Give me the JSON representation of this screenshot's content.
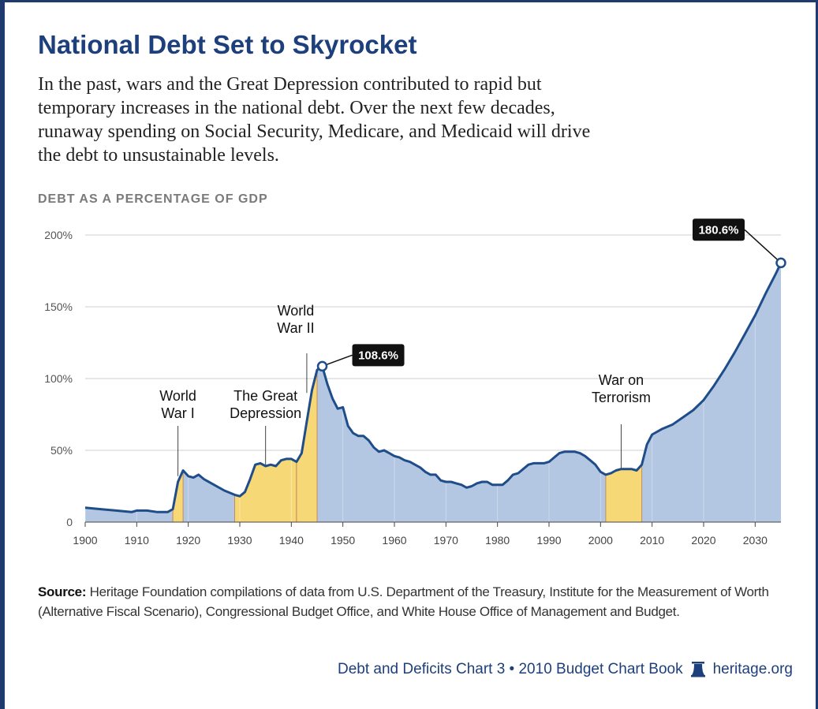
{
  "title": "National Debt Set to Skyrocket",
  "intro_lines": [
    "In the past, wars and the Great Depression contributed to rapid but",
    "temporary increases in the national debt. Over the next few decades,",
    "runaway spending on Social Security, Medicare, and Medicaid will drive",
    "the debt to unsustainable levels."
  ],
  "chart_label": "DEBT AS A PERCENTAGE OF GDP",
  "chart_data": {
    "type": "area",
    "title": "DEBT AS A PERCENTAGE OF GDP",
    "xlim": [
      1900,
      2035
    ],
    "ylim": [
      0,
      200
    ],
    "x_ticks": [
      1900,
      1910,
      1920,
      1930,
      1940,
      1950,
      1960,
      1970,
      1980,
      1990,
      2000,
      2010,
      2020,
      2030
    ],
    "y_ticks": [
      {
        "value": 0,
        "label": "0"
      },
      {
        "value": 50,
        "label": "50%"
      },
      {
        "value": 100,
        "label": "100%"
      },
      {
        "value": 150,
        "label": "150%"
      },
      {
        "value": 200,
        "label": "200%"
      }
    ],
    "grid": true,
    "fill_color": "#b3c7e2",
    "line_color": "#1f4d8a",
    "highlight_color": "#f7d877",
    "points": [
      [
        1900,
        10
      ],
      [
        1903,
        9
      ],
      [
        1906,
        8
      ],
      [
        1909,
        7
      ],
      [
        1910,
        8
      ],
      [
        1912,
        8
      ],
      [
        1914,
        7
      ],
      [
        1916,
        7
      ],
      [
        1917,
        9
      ],
      [
        1918,
        28
      ],
      [
        1919,
        36
      ],
      [
        1920,
        32
      ],
      [
        1921,
        31
      ],
      [
        1922,
        33
      ],
      [
        1923,
        30
      ],
      [
        1925,
        26
      ],
      [
        1927,
        22
      ],
      [
        1929,
        19
      ],
      [
        1930,
        18
      ],
      [
        1931,
        21
      ],
      [
        1932,
        30
      ],
      [
        1933,
        40
      ],
      [
        1934,
        41
      ],
      [
        1935,
        39
      ],
      [
        1936,
        40
      ],
      [
        1937,
        39
      ],
      [
        1938,
        43
      ],
      [
        1939,
        44
      ],
      [
        1940,
        44
      ],
      [
        1941,
        42
      ],
      [
        1942,
        48
      ],
      [
        1943,
        70
      ],
      [
        1944,
        92
      ],
      [
        1945,
        106
      ],
      [
        1946,
        108.6
      ],
      [
        1947,
        96
      ],
      [
        1948,
        86
      ],
      [
        1949,
        79
      ],
      [
        1950,
        80
      ],
      [
        1951,
        67
      ],
      [
        1952,
        62
      ],
      [
        1953,
        60
      ],
      [
        1954,
        60
      ],
      [
        1955,
        57
      ],
      [
        1956,
        52
      ],
      [
        1957,
        49
      ],
      [
        1958,
        50
      ],
      [
        1959,
        48
      ],
      [
        1960,
        46
      ],
      [
        1961,
        45
      ],
      [
        1962,
        43
      ],
      [
        1963,
        42
      ],
      [
        1964,
        40
      ],
      [
        1965,
        38
      ],
      [
        1966,
        35
      ],
      [
        1967,
        33
      ],
      [
        1968,
        33
      ],
      [
        1969,
        29
      ],
      [
        1970,
        28
      ],
      [
        1971,
        28
      ],
      [
        1972,
        27
      ],
      [
        1973,
        26
      ],
      [
        1974,
        24
      ],
      [
        1975,
        25
      ],
      [
        1976,
        27
      ],
      [
        1977,
        28
      ],
      [
        1978,
        28
      ],
      [
        1979,
        26
      ],
      [
        1980,
        26
      ],
      [
        1981,
        26
      ],
      [
        1982,
        29
      ],
      [
        1983,
        33
      ],
      [
        1984,
        34
      ],
      [
        1985,
        37
      ],
      [
        1986,
        40
      ],
      [
        1987,
        41
      ],
      [
        1988,
        41
      ],
      [
        1989,
        41
      ],
      [
        1990,
        42
      ],
      [
        1991,
        45
      ],
      [
        1992,
        48
      ],
      [
        1993,
        49
      ],
      [
        1994,
        49
      ],
      [
        1995,
        49
      ],
      [
        1996,
        48
      ],
      [
        1997,
        46
      ],
      [
        1998,
        43
      ],
      [
        1999,
        40
      ],
      [
        2000,
        35
      ],
      [
        2001,
        33
      ],
      [
        2002,
        34
      ],
      [
        2003,
        36
      ],
      [
        2004,
        37
      ],
      [
        2005,
        37
      ],
      [
        2006,
        37
      ],
      [
        2007,
        36
      ],
      [
        2008,
        40
      ],
      [
        2009,
        54
      ],
      [
        2010,
        61
      ],
      [
        2012,
        65
      ],
      [
        2014,
        68
      ],
      [
        2016,
        73
      ],
      [
        2018,
        78
      ],
      [
        2020,
        85
      ],
      [
        2022,
        95
      ],
      [
        2024,
        106
      ],
      [
        2026,
        118
      ],
      [
        2028,
        131
      ],
      [
        2030,
        144
      ],
      [
        2032,
        159
      ],
      [
        2034,
        173
      ],
      [
        2035,
        180.6
      ]
    ],
    "highlight_periods": [
      {
        "start": 1917,
        "end": 1919
      },
      {
        "start": 1929,
        "end": 1941
      },
      {
        "start": 1941,
        "end": 1945
      },
      {
        "start": 2001,
        "end": 2008
      }
    ],
    "annotations": [
      {
        "lines": [
          "World",
          "War I"
        ],
        "x": 1918,
        "y": 32
      },
      {
        "lines": [
          "The Great",
          "Depression"
        ],
        "x": 1935,
        "y": 40
      },
      {
        "lines": [
          "World",
          "War II"
        ],
        "x": 1943,
        "y": 90
      },
      {
        "lines": [
          "War on",
          "Terrorism"
        ],
        "x": 2004,
        "y": 37
      }
    ],
    "callouts": [
      {
        "label": "108.6%",
        "x": 1946,
        "y": 108.6
      },
      {
        "label": "180.6%",
        "x": 2035,
        "y": 180.6
      }
    ]
  },
  "source": {
    "label": "Source:",
    "text": "Heritage Foundation compilations of data from U.S. Department of the Treasury, Institute for the Measurement of Worth (Alternative Fiscal Scenario), Congressional Budget Office, and White House Office of Management and Budget."
  },
  "footer": {
    "chart_ref": "Debt and Deficits Chart 3 • 2010 Budget Chart Book",
    "site": "heritage.org",
    "icon": "liberty-bell-icon"
  }
}
